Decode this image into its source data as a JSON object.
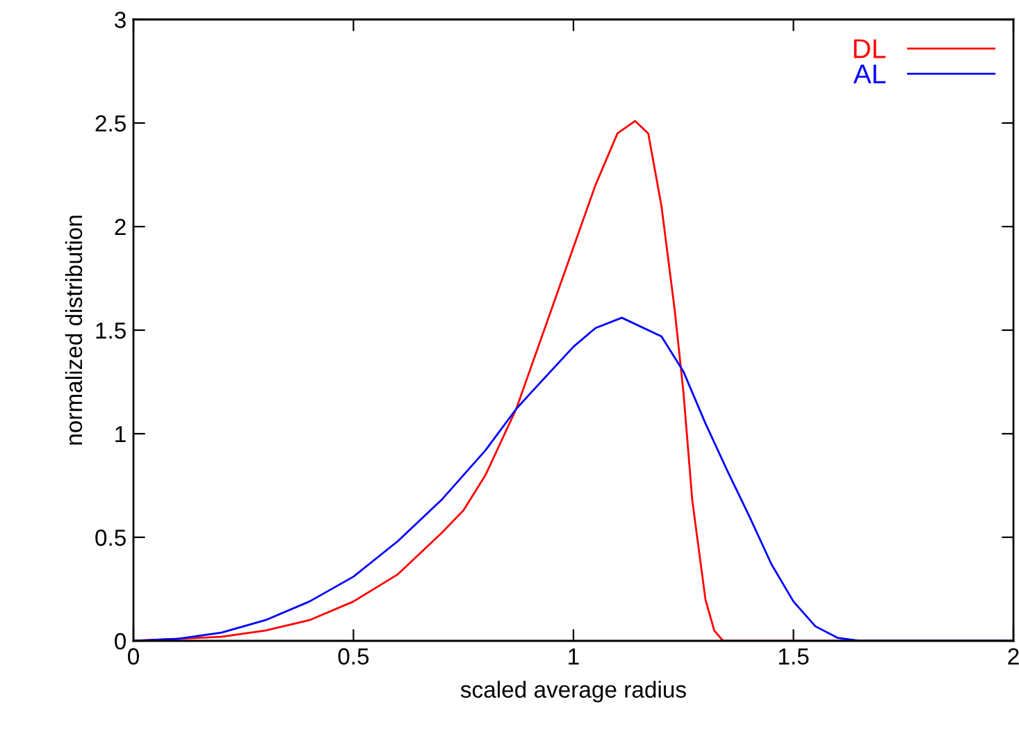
{
  "chart_data": {
    "type": "line",
    "xlabel": "scaled average radius",
    "ylabel": "normalized distribution",
    "xlim": [
      0,
      2
    ],
    "ylim": [
      0,
      3
    ],
    "xticks": [
      0,
      0.5,
      1,
      1.5,
      2
    ],
    "yticks": [
      0,
      0.5,
      1,
      1.5,
      2,
      2.5,
      3
    ],
    "legend": "top right",
    "grid": false,
    "marker": "none",
    "line_style": "solid",
    "series": [
      {
        "name": "DL",
        "color": "#ff0000",
        "x": [
          0,
          0.2,
          0.3,
          0.4,
          0.5,
          0.6,
          0.7,
          0.75,
          0.8,
          0.87,
          0.9,
          0.95,
          1.0,
          1.05,
          1.1,
          1.14,
          1.17,
          1.2,
          1.23,
          1.25,
          1.27,
          1.3,
          1.32,
          1.34,
          1.4,
          2
        ],
        "values": [
          0,
          0.02,
          0.05,
          0.1,
          0.19,
          0.32,
          0.52,
          0.63,
          0.8,
          1.12,
          1.3,
          1.6,
          1.9,
          2.2,
          2.45,
          2.51,
          2.45,
          2.1,
          1.6,
          1.2,
          0.68,
          0.2,
          0.05,
          0,
          0,
          0
        ]
      },
      {
        "name": "AL",
        "color": "#0000ff",
        "x": [
          0,
          0.1,
          0.2,
          0.3,
          0.4,
          0.5,
          0.6,
          0.7,
          0.8,
          0.87,
          0.9,
          1.0,
          1.05,
          1.11,
          1.2,
          1.25,
          1.3,
          1.35,
          1.4,
          1.45,
          1.5,
          1.55,
          1.6,
          1.65,
          2
        ],
        "values": [
          0,
          0.01,
          0.04,
          0.1,
          0.19,
          0.31,
          0.48,
          0.68,
          0.92,
          1.12,
          1.19,
          1.42,
          1.51,
          1.56,
          1.47,
          1.3,
          1.05,
          0.82,
          0.6,
          0.37,
          0.19,
          0.07,
          0.015,
          0,
          0
        ]
      }
    ]
  }
}
